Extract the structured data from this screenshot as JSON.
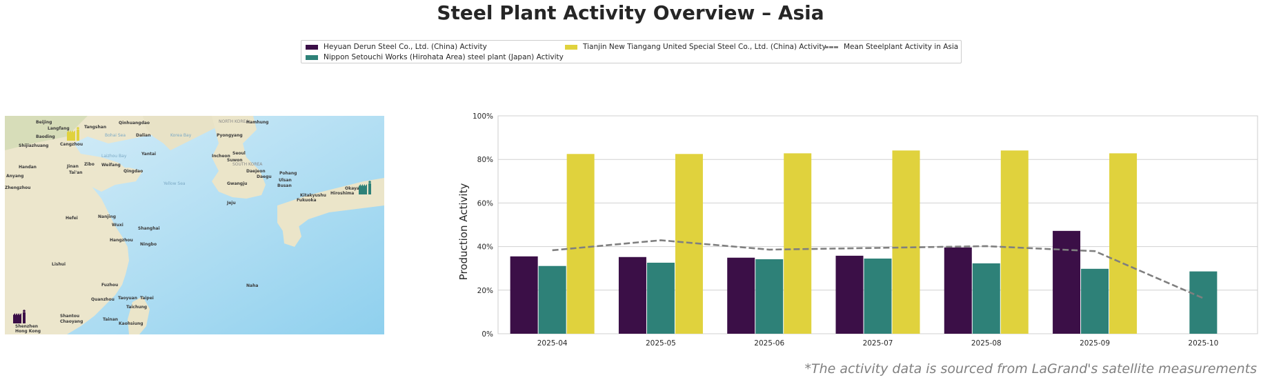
{
  "title": "Steel Plant Activity Overview – Asia",
  "legend": {
    "items": [
      {
        "label": "Heyuan Derun Steel Co., Ltd. (China) Activity",
        "color": "#3b0f47",
        "kind": "bar"
      },
      {
        "label": "Nippon Setouchi Works (Hirohata Area) steel plant (Japan) Activity",
        "color": "#2e8178",
        "kind": "bar"
      },
      {
        "label": "Tianjin New Tiangang United Special Steel Co., Ltd. (China) Activity",
        "color": "#e0d23d",
        "kind": "bar"
      },
      {
        "label": "Mean Steelplant Activity in Asia",
        "color": "#7f7f7f",
        "kind": "dashed-line"
      }
    ]
  },
  "map": {
    "labels": [
      {
        "text": "Beijing"
      },
      {
        "text": "Langfang"
      },
      {
        "text": "Tangshan"
      },
      {
        "text": "Qinhuangdao"
      },
      {
        "text": "Baoding"
      },
      {
        "text": "Cangzhou"
      },
      {
        "text": "Shijiazhuang"
      },
      {
        "text": "Bohai Sea"
      },
      {
        "text": "Laizhou Bay"
      },
      {
        "text": "Korea Bay"
      },
      {
        "text": "Dalian"
      },
      {
        "text": "Yantai"
      },
      {
        "text": "Jinan"
      },
      {
        "text": "Zibo"
      },
      {
        "text": "Weifang"
      },
      {
        "text": "Qingdao"
      },
      {
        "text": "Tai'an"
      },
      {
        "text": "Handan"
      },
      {
        "text": "Anyang"
      },
      {
        "text": "Zhengzhou"
      },
      {
        "text": "Yellow Sea"
      },
      {
        "text": "NORTH KOREA"
      },
      {
        "text": "Hamhung"
      },
      {
        "text": "Pyongyang"
      },
      {
        "text": "Incheon"
      },
      {
        "text": "Seoul"
      },
      {
        "text": "Suwon"
      },
      {
        "text": "SOUTH KOREA"
      },
      {
        "text": "Daejeon"
      },
      {
        "text": "Daegu"
      },
      {
        "text": "Pohang"
      },
      {
        "text": "Ulsan"
      },
      {
        "text": "Gwangju"
      },
      {
        "text": "Busan"
      },
      {
        "text": "Kitakyushu"
      },
      {
        "text": "Fukuoka"
      },
      {
        "text": "Hiroshima"
      },
      {
        "text": "Okayama"
      },
      {
        "text": "Jeju"
      },
      {
        "text": "Hefei"
      },
      {
        "text": "Nanjing"
      },
      {
        "text": "Shanghai"
      },
      {
        "text": "Hangzhou"
      },
      {
        "text": "Ningbo"
      },
      {
        "text": "Wuxi"
      },
      {
        "text": "Lishui"
      },
      {
        "text": "Fuzhou"
      },
      {
        "text": "Taoyuan"
      },
      {
        "text": "Taipei"
      },
      {
        "text": "Taichung"
      },
      {
        "text": "Tainan"
      },
      {
        "text": "Kaohsiung"
      },
      {
        "text": "Quanzhou"
      },
      {
        "text": "Shantou"
      },
      {
        "text": "Chaoyang"
      },
      {
        "text": "Shenzhen"
      },
      {
        "text": "Hong Kong"
      },
      {
        "text": "Naha"
      }
    ],
    "markers": [
      {
        "name": "tianjin-plant-marker",
        "color": "#e0d23d"
      },
      {
        "name": "nippon-setouchi-plant-marker",
        "color": "#2e8178"
      },
      {
        "name": "heyuan-plant-marker",
        "color": "#3b0f47"
      }
    ]
  },
  "chart_data": {
    "type": "bar",
    "title": "",
    "xlabel": "",
    "ylabel": "Production Activity",
    "ylim": [
      0,
      100
    ],
    "yticks": [
      "0%",
      "20%",
      "40%",
      "60%",
      "80%",
      "100%"
    ],
    "ytick_values": [
      0,
      20,
      40,
      60,
      80,
      100
    ],
    "grid": true,
    "legend_position": "top-center",
    "categories": [
      "2025-04",
      "2025-05",
      "2025-06",
      "2025-07",
      "2025-08",
      "2025-09",
      "2025-10"
    ],
    "series": [
      {
        "name": "Heyuan Derun Steel Co., Ltd. (China) Activity",
        "color": "#3b0f47",
        "values": [
          35.5,
          35.2,
          34.9,
          35.8,
          39.6,
          47.2,
          null
        ]
      },
      {
        "name": "Nippon Setouchi Works (Hirohata Area) steel plant (Japan) Activity",
        "color": "#2e8178",
        "values": [
          31.1,
          32.6,
          34.2,
          34.5,
          32.3,
          29.8,
          28.6
        ]
      },
      {
        "name": "Tianjin New Tiangang United Special Steel Co., Ltd. (China) Activity",
        "color": "#e0d23d",
        "values": [
          82.5,
          82.5,
          82.8,
          84.1,
          84.1,
          82.8,
          null
        ]
      }
    ],
    "line_series": {
      "name": "Mean Steelplant Activity in Asia",
      "color": "#7f7f7f",
      "style": "dashed",
      "values": [
        38.3,
        42.9,
        38.6,
        39.4,
        40.2,
        37.9,
        16.3
      ]
    }
  },
  "caption": "*The activity data is sourced from LaGrand's satellite measurements"
}
